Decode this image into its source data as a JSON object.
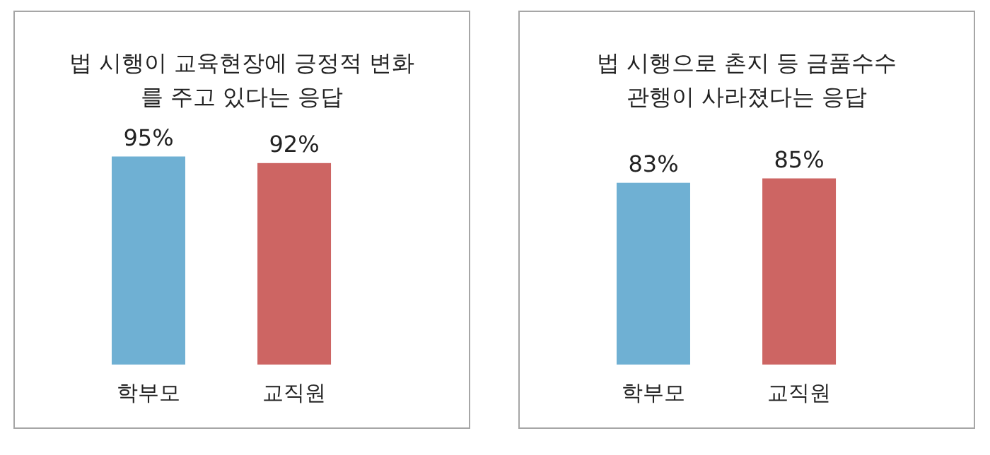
{
  "chart_data": [
    {
      "type": "bar",
      "title": "법 시행이 교육현장에 긍정적 변화\n를 주고 있다는 응답",
      "categories": [
        "학부모",
        "교직원"
      ],
      "values": [
        95,
        92
      ],
      "colors": [
        "#6fb0d3",
        "#cd6563"
      ],
      "value_labels": [
        "95%",
        "92%"
      ]
    },
    {
      "type": "bar",
      "title": "법 시행으로 촌지 등 금품수수\n관행이 사라졌다는 응답",
      "categories": [
        "학부모",
        "교직원"
      ],
      "values": [
        83,
        85
      ],
      "colors": [
        "#6fb0d3",
        "#cd6563"
      ],
      "value_labels": [
        "83%",
        "85%"
      ]
    }
  ]
}
